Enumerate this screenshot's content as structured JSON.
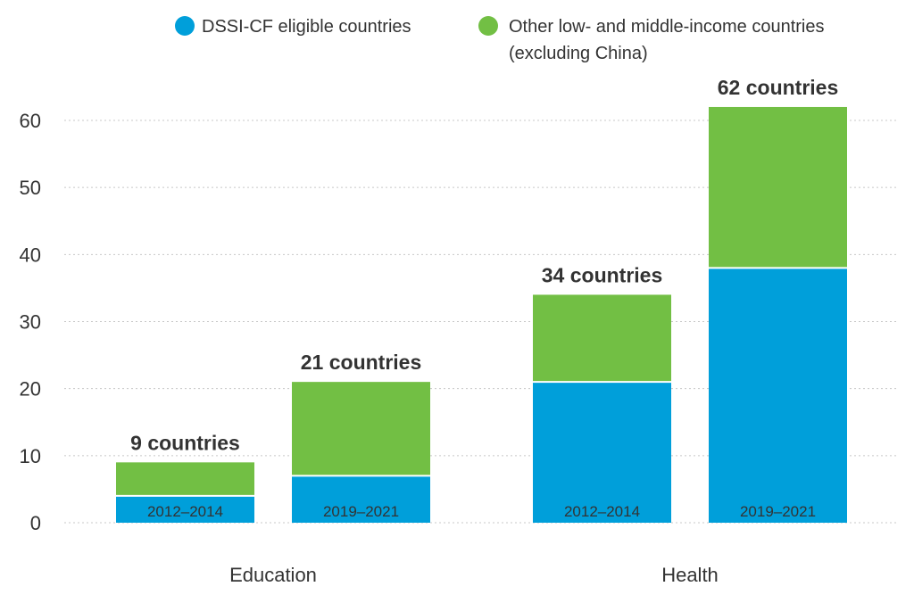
{
  "chart_data": {
    "type": "bar",
    "stacked": true,
    "title": "",
    "xlabel": "",
    "ylabel": "",
    "ylim": [
      0,
      62
    ],
    "yticks": [
      0,
      10,
      20,
      30,
      40,
      50,
      60
    ],
    "grid": true,
    "legend_position": "top-right",
    "legend": [
      "DSSI-CF eligible countries",
      "Other low- and middle-income countries",
      "(excluding China)"
    ],
    "groups": [
      "Education",
      "Health"
    ],
    "bars": [
      {
        "group": "Education",
        "period": "2012–2014",
        "dssi": 4,
        "other": 5,
        "total_label": "9 countries"
      },
      {
        "group": "Education",
        "period": "2019–2021",
        "dssi": 7,
        "other": 14,
        "total_label": "21 countries"
      },
      {
        "group": "Health",
        "period": "2012–2014",
        "dssi": 21,
        "other": 13,
        "total_label": "34 countries"
      },
      {
        "group": "Health",
        "period": "2019–2021",
        "dssi": 38,
        "other": 24,
        "total_label": "62 countries"
      }
    ],
    "series": [
      {
        "name": "DSSI-CF eligible countries",
        "key": "dssi",
        "color": "#009FDA"
      },
      {
        "name": "Other low- and middle-income countries (excluding China)",
        "key": "other",
        "color": "#72BF44"
      }
    ]
  }
}
